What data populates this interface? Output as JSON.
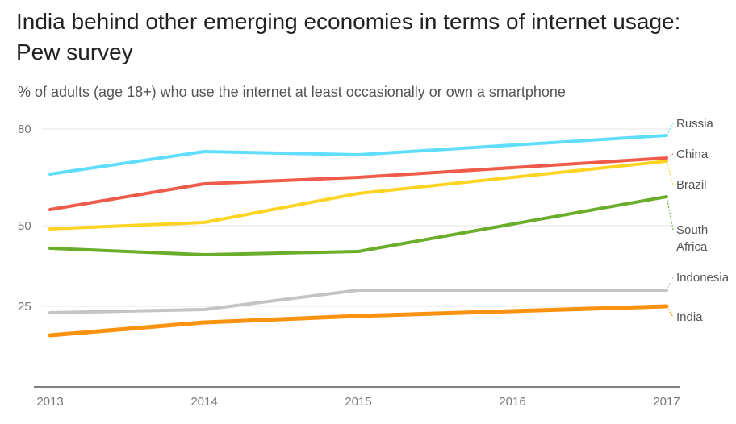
{
  "title": "India behind other emerging economies in terms of internet usage: Pew survey",
  "subtitle": "% of adults (age 18+) who use the internet at least occasionally or own a smartphone",
  "chart_data": {
    "type": "line",
    "title": "India behind other emerging economies in terms of internet usage: Pew survey",
    "subtitle": "% of adults (age 18+) who use the internet at least occasionally or own a smartphone",
    "x": [
      2013,
      2014,
      2015,
      2016,
      2017
    ],
    "x_ticks": [
      "2013",
      "2014",
      "2015",
      "2016",
      "2017"
    ],
    "y_ticks": [
      "80",
      "50",
      "25"
    ],
    "y_tick_values": [
      80,
      50,
      25
    ],
    "ylim": [
      0,
      81
    ],
    "grid": "horizontal at y ticks",
    "legend": "direct labels at right end of lines",
    "series": [
      {
        "name": "Russia",
        "color": "#61ddfc",
        "points": [
          {
            "x": 2013,
            "y": 66
          },
          {
            "x": 2014,
            "y": 73
          },
          {
            "x": 2015,
            "y": 72
          },
          {
            "x": 2017,
            "y": 78
          }
        ]
      },
      {
        "name": "China",
        "color": "#ef5b4b",
        "points": [
          {
            "x": 2013,
            "y": 55
          },
          {
            "x": 2014,
            "y": 63
          },
          {
            "x": 2015,
            "y": 65
          },
          {
            "x": 2017,
            "y": 71
          }
        ]
      },
      {
        "name": "Brazil",
        "color": "#fed424",
        "points": [
          {
            "x": 2013,
            "y": 49
          },
          {
            "x": 2014,
            "y": 51
          },
          {
            "x": 2015,
            "y": 60
          },
          {
            "x": 2017,
            "y": 70
          }
        ]
      },
      {
        "name": "South Africa",
        "color": "#6aad2a",
        "label_lines": [
          "South",
          "Africa"
        ],
        "points": [
          {
            "x": 2013,
            "y": 43
          },
          {
            "x": 2014,
            "y": 41
          },
          {
            "x": 2015,
            "y": 42
          },
          {
            "x": 2017,
            "y": 59
          }
        ]
      },
      {
        "name": "Indonesia",
        "color": "#c4c4c4",
        "points": [
          {
            "x": 2013,
            "y": 23
          },
          {
            "x": 2014,
            "y": 24
          },
          {
            "x": 2015,
            "y": 30
          },
          {
            "x": 2017,
            "y": 30
          }
        ]
      },
      {
        "name": "India",
        "color": "#f8920f",
        "points": [
          {
            "x": 2013,
            "y": 16
          },
          {
            "x": 2014,
            "y": 20
          },
          {
            "x": 2015,
            "y": 22
          },
          {
            "x": 2017,
            "y": 25
          }
        ]
      }
    ]
  }
}
